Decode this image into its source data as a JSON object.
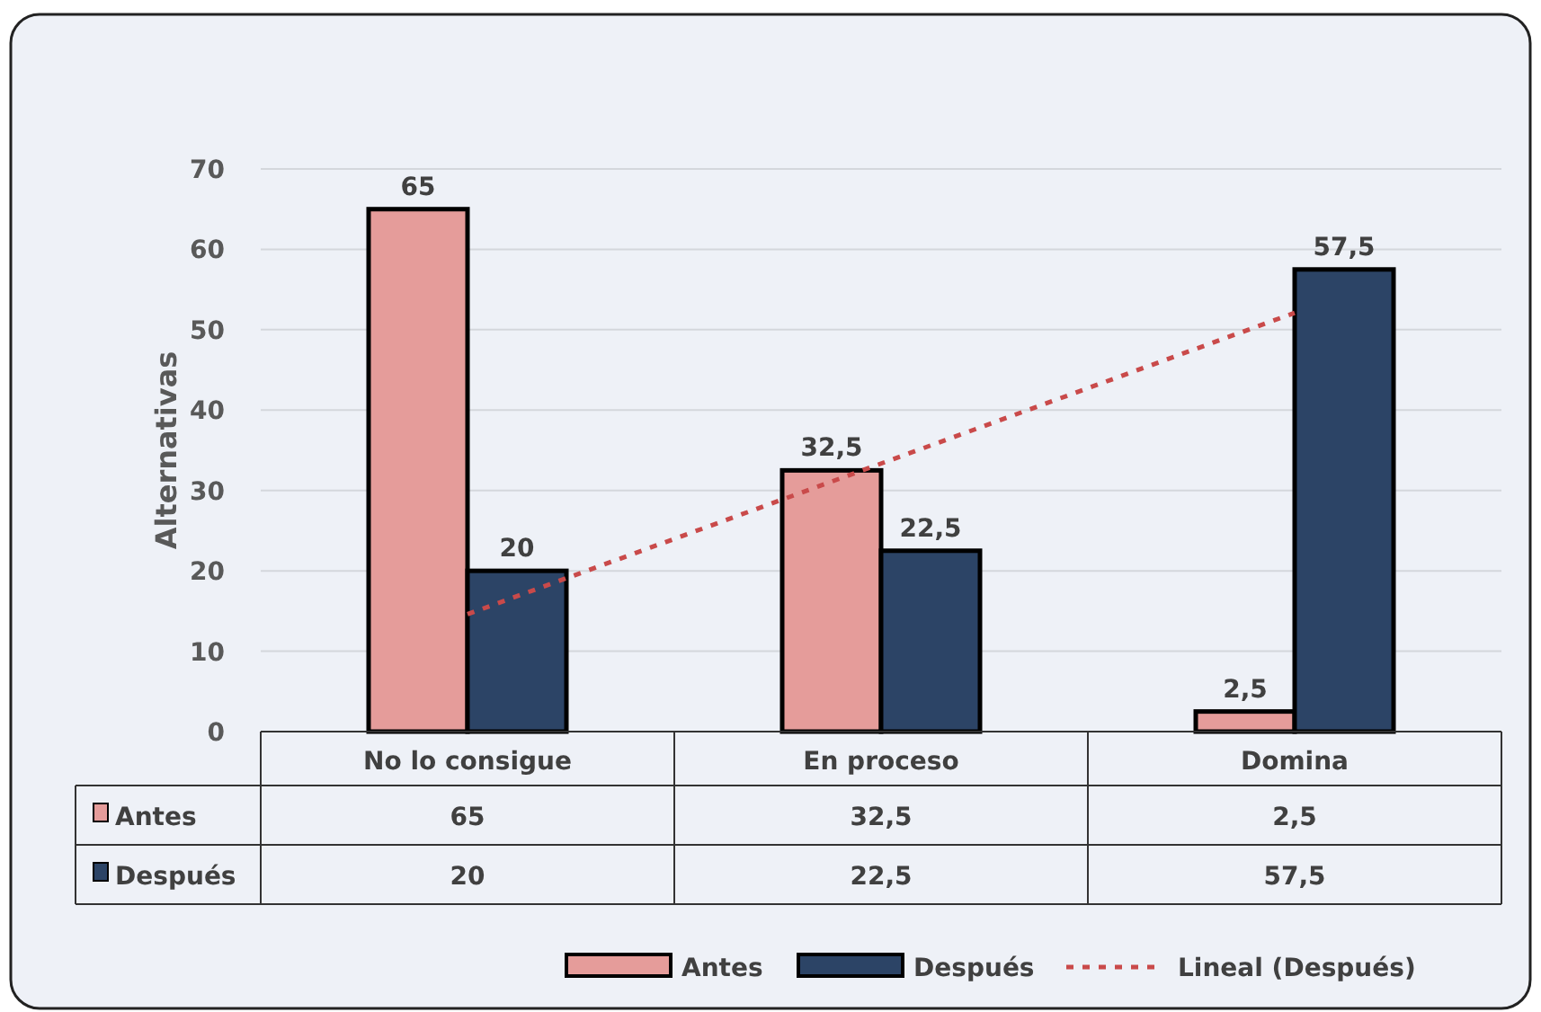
{
  "chart_data": {
    "type": "bar",
    "ylabel": "Alternativas",
    "categories": [
      "No lo consigue",
      "En proceso",
      "Domina"
    ],
    "series": [
      {
        "name": "Antes",
        "color": "#e59c9a",
        "values": [
          65,
          32.5,
          2.5
        ],
        "value_labels": [
          "65",
          "32,5",
          "2,5"
        ]
      },
      {
        "name": "Después",
        "color": "#2c4466",
        "values": [
          20,
          22.5,
          57.5
        ],
        "value_labels": [
          "20",
          "22,5",
          "57,5"
        ]
      },
      {
        "name": "Lineal (Después)",
        "type": "line",
        "color": "#c94a4a",
        "line_style": "dashed",
        "x": [
          "No lo consigue",
          "Domina"
        ],
        "values": [
          14.6,
          52.1
        ]
      }
    ],
    "ylim": [
      0,
      70
    ],
    "yticks": [
      0,
      10,
      20,
      30,
      40,
      50,
      60,
      70
    ],
    "grid": "y",
    "legend": "bottom",
    "marker": "none"
  }
}
